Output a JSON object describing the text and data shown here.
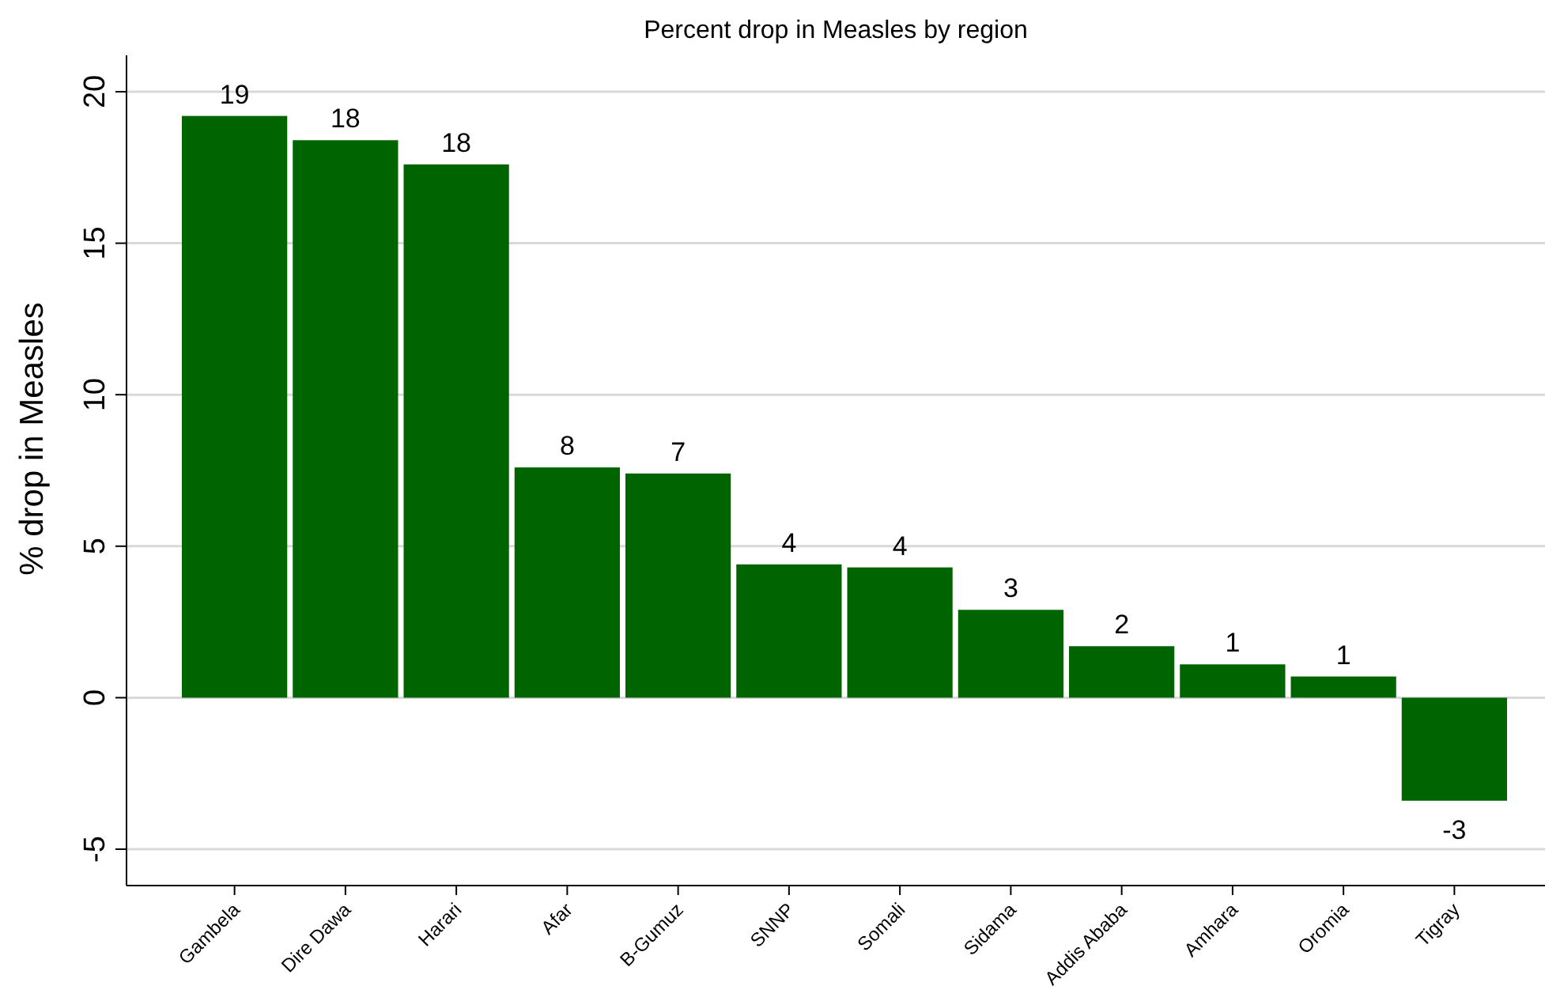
{
  "chart_data": {
    "type": "bar",
    "title": "Percent drop in Measles by region",
    "ylabel": "% drop in Measles",
    "categories": [
      "Gambela",
      "Dire Dawa",
      "Harari",
      "Afar",
      "B-Gumuz",
      "SNNP",
      "Somali",
      "Sidama",
      "Addis Ababa",
      "Amhara",
      "Oromia",
      "Tigray"
    ],
    "values": [
      19.2,
      18.4,
      17.6,
      7.6,
      7.4,
      4.4,
      4.3,
      2.9,
      1.7,
      1.1,
      0.7,
      -3.4
    ],
    "value_labels": [
      "19",
      "18",
      "18",
      "8",
      "7",
      "4",
      "4",
      "3",
      "2",
      "1",
      "1",
      "-3"
    ],
    "color": "#006400",
    "ylim": [
      -6.2,
      21.2
    ],
    "yticks": [
      -5,
      0,
      5,
      10,
      15,
      20
    ],
    "grid": "y"
  }
}
